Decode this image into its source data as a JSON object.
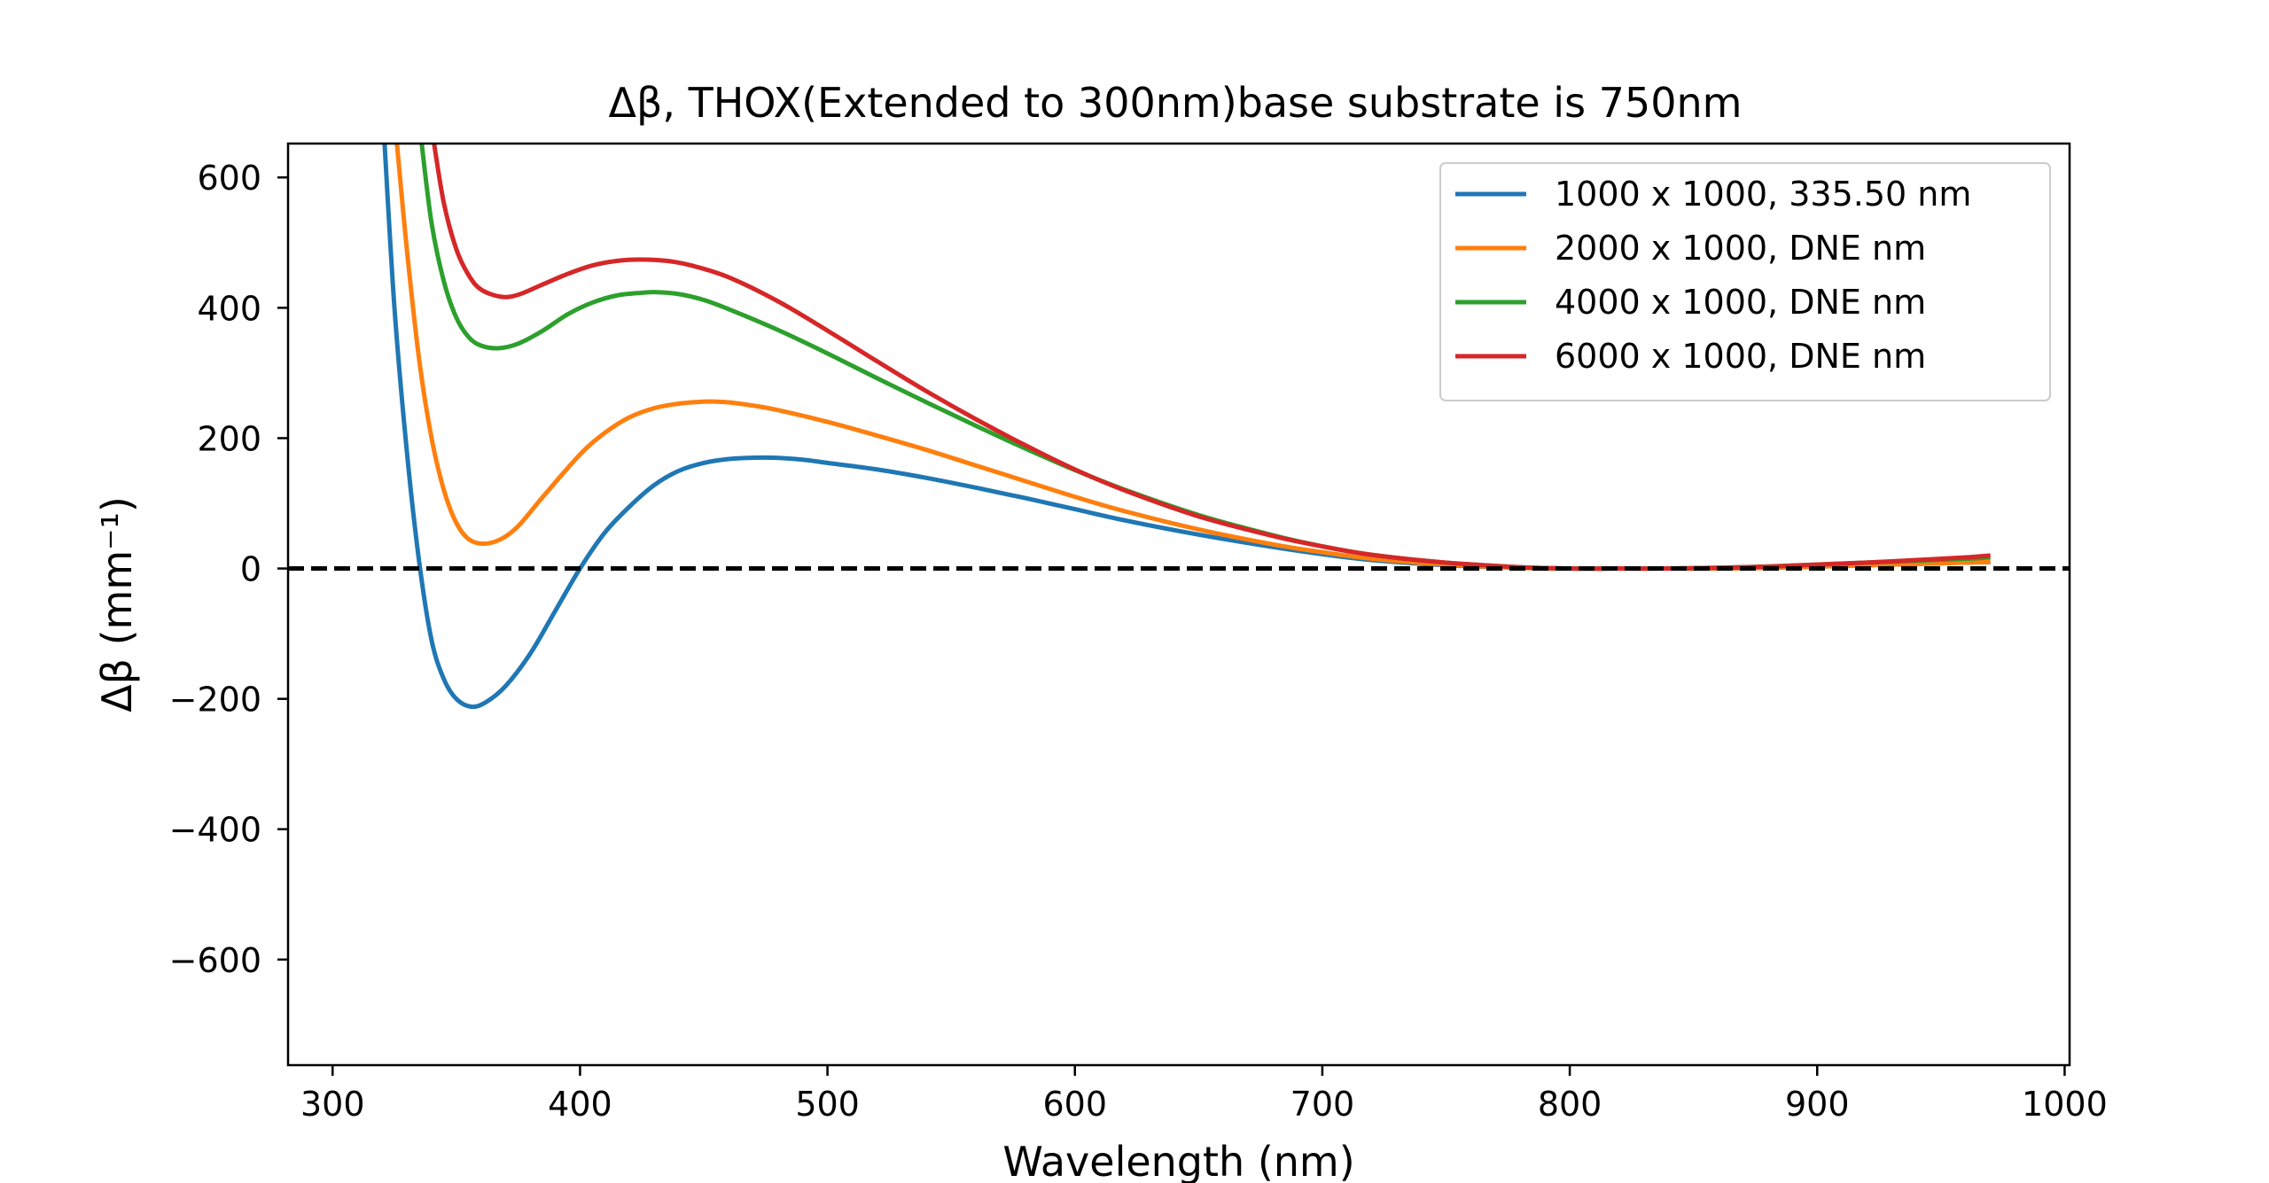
{
  "chart_data": {
    "type": "line",
    "title": "Δβ, THOX(Extended to 300nm)base substrate is 750nm",
    "xlabel": "Wavelength (nm)",
    "ylabel": "Δβ (mm⁻¹)",
    "xlim": [
      282,
      1002
    ],
    "ylim": [
      -762,
      652
    ],
    "xticks": [
      300,
      400,
      500,
      600,
      700,
      800,
      900,
      1000
    ],
    "xtick_labels": [
      "300",
      "400",
      "500",
      "600",
      "700",
      "800",
      "900",
      "1000"
    ],
    "yticks": [
      600,
      400,
      200,
      0,
      -200,
      -400,
      -600
    ],
    "ytick_labels": [
      "600",
      "400",
      "200",
      "0",
      "−200",
      "−400",
      "−600"
    ],
    "grid": false,
    "legend_position": "top-right",
    "reference_line": {
      "y": 0,
      "style": "dashed",
      "color": "#000000"
    },
    "series": [
      {
        "name": "1000 x 1000,  335.50 nm",
        "color": "#1f77b4",
        "x": [
          321,
          325,
          330,
          335,
          340,
          345,
          350,
          356,
          362,
          370,
          380,
          390,
          400,
          410,
          420,
          430,
          440,
          450,
          460,
          470,
          478,
          490,
          500,
          520,
          540,
          560,
          580,
          600,
          620,
          650,
          680,
          700,
          720,
          750,
          780,
          800,
          820,
          840,
          860,
          880,
          900,
          920,
          940,
          960,
          970
        ],
        "y": [
          652,
          400,
          180,
          10,
          -110,
          -170,
          -200,
          -212,
          -205,
          -180,
          -130,
          -65,
          0,
          55,
          95,
          128,
          150,
          162,
          168,
          170,
          170,
          167,
          162,
          152,
          139,
          124,
          108,
          91,
          74,
          52,
          33,
          22,
          13,
          5,
          1,
          0,
          0,
          0,
          0,
          1,
          3,
          5,
          7,
          9,
          10
        ]
      },
      {
        "name": "2000 x 1000,  DNE nm",
        "color": "#ff7f0e",
        "x": [
          326,
          330,
          335,
          340,
          345,
          350,
          355,
          361,
          368,
          375,
          385,
          400,
          410,
          420,
          430,
          440,
          450,
          455,
          460,
          470,
          480,
          500,
          520,
          540,
          560,
          580,
          600,
          620,
          650,
          680,
          700,
          720,
          750,
          780,
          800,
          820,
          840,
          860,
          880,
          900,
          920,
          940,
          960,
          970
        ],
        "y": [
          652,
          490,
          320,
          200,
          120,
          70,
          45,
          38,
          45,
          65,
          110,
          175,
          208,
          232,
          246,
          253,
          256,
          256,
          255,
          250,
          243,
          225,
          204,
          182,
          158,
          134,
          110,
          88,
          60,
          37,
          25,
          15,
          6,
          1,
          0,
          0,
          0,
          0,
          1,
          3,
          5,
          7,
          9,
          10
        ]
      },
      {
        "name": "4000 x 1000,  DNE nm",
        "color": "#2ca02c",
        "x": [
          336,
          340,
          345,
          350,
          355,
          360,
          367,
          375,
          385,
          395,
          405,
          415,
          425,
          431,
          440,
          450,
          460,
          480,
          500,
          520,
          540,
          560,
          580,
          600,
          620,
          650,
          680,
          700,
          720,
          750,
          780,
          800,
          820,
          840,
          860,
          880,
          900,
          920,
          940,
          960,
          970
        ],
        "y": [
          652,
          530,
          440,
          385,
          355,
          342,
          338,
          345,
          365,
          390,
          408,
          419,
          423,
          424,
          421,
          412,
          398,
          366,
          330,
          292,
          255,
          219,
          184,
          151,
          121,
          82,
          51,
          34,
          21,
          9,
          2,
          0,
          0,
          0,
          1,
          3,
          6,
          9,
          12,
          15,
          17
        ]
      },
      {
        "name": "6000 x 1000,  DNE nm",
        "color": "#d62728",
        "x": [
          341,
          345,
          350,
          355,
          360,
          368,
          375,
          385,
          395,
          405,
          415,
          424,
          435,
          445,
          460,
          480,
          500,
          520,
          540,
          560,
          580,
          600,
          620,
          650,
          680,
          700,
          720,
          750,
          780,
          800,
          820,
          840,
          860,
          880,
          900,
          920,
          940,
          960,
          970
        ],
        "y": [
          652,
          560,
          490,
          450,
          428,
          417,
          420,
          436,
          452,
          465,
          472,
          474,
          472,
          465,
          447,
          410,
          365,
          318,
          272,
          229,
          189,
          152,
          120,
          80,
          50,
          34,
          21,
          9,
          2,
          0,
          0,
          0,
          1,
          3,
          6,
          9,
          13,
          17,
          20
        ]
      }
    ]
  }
}
